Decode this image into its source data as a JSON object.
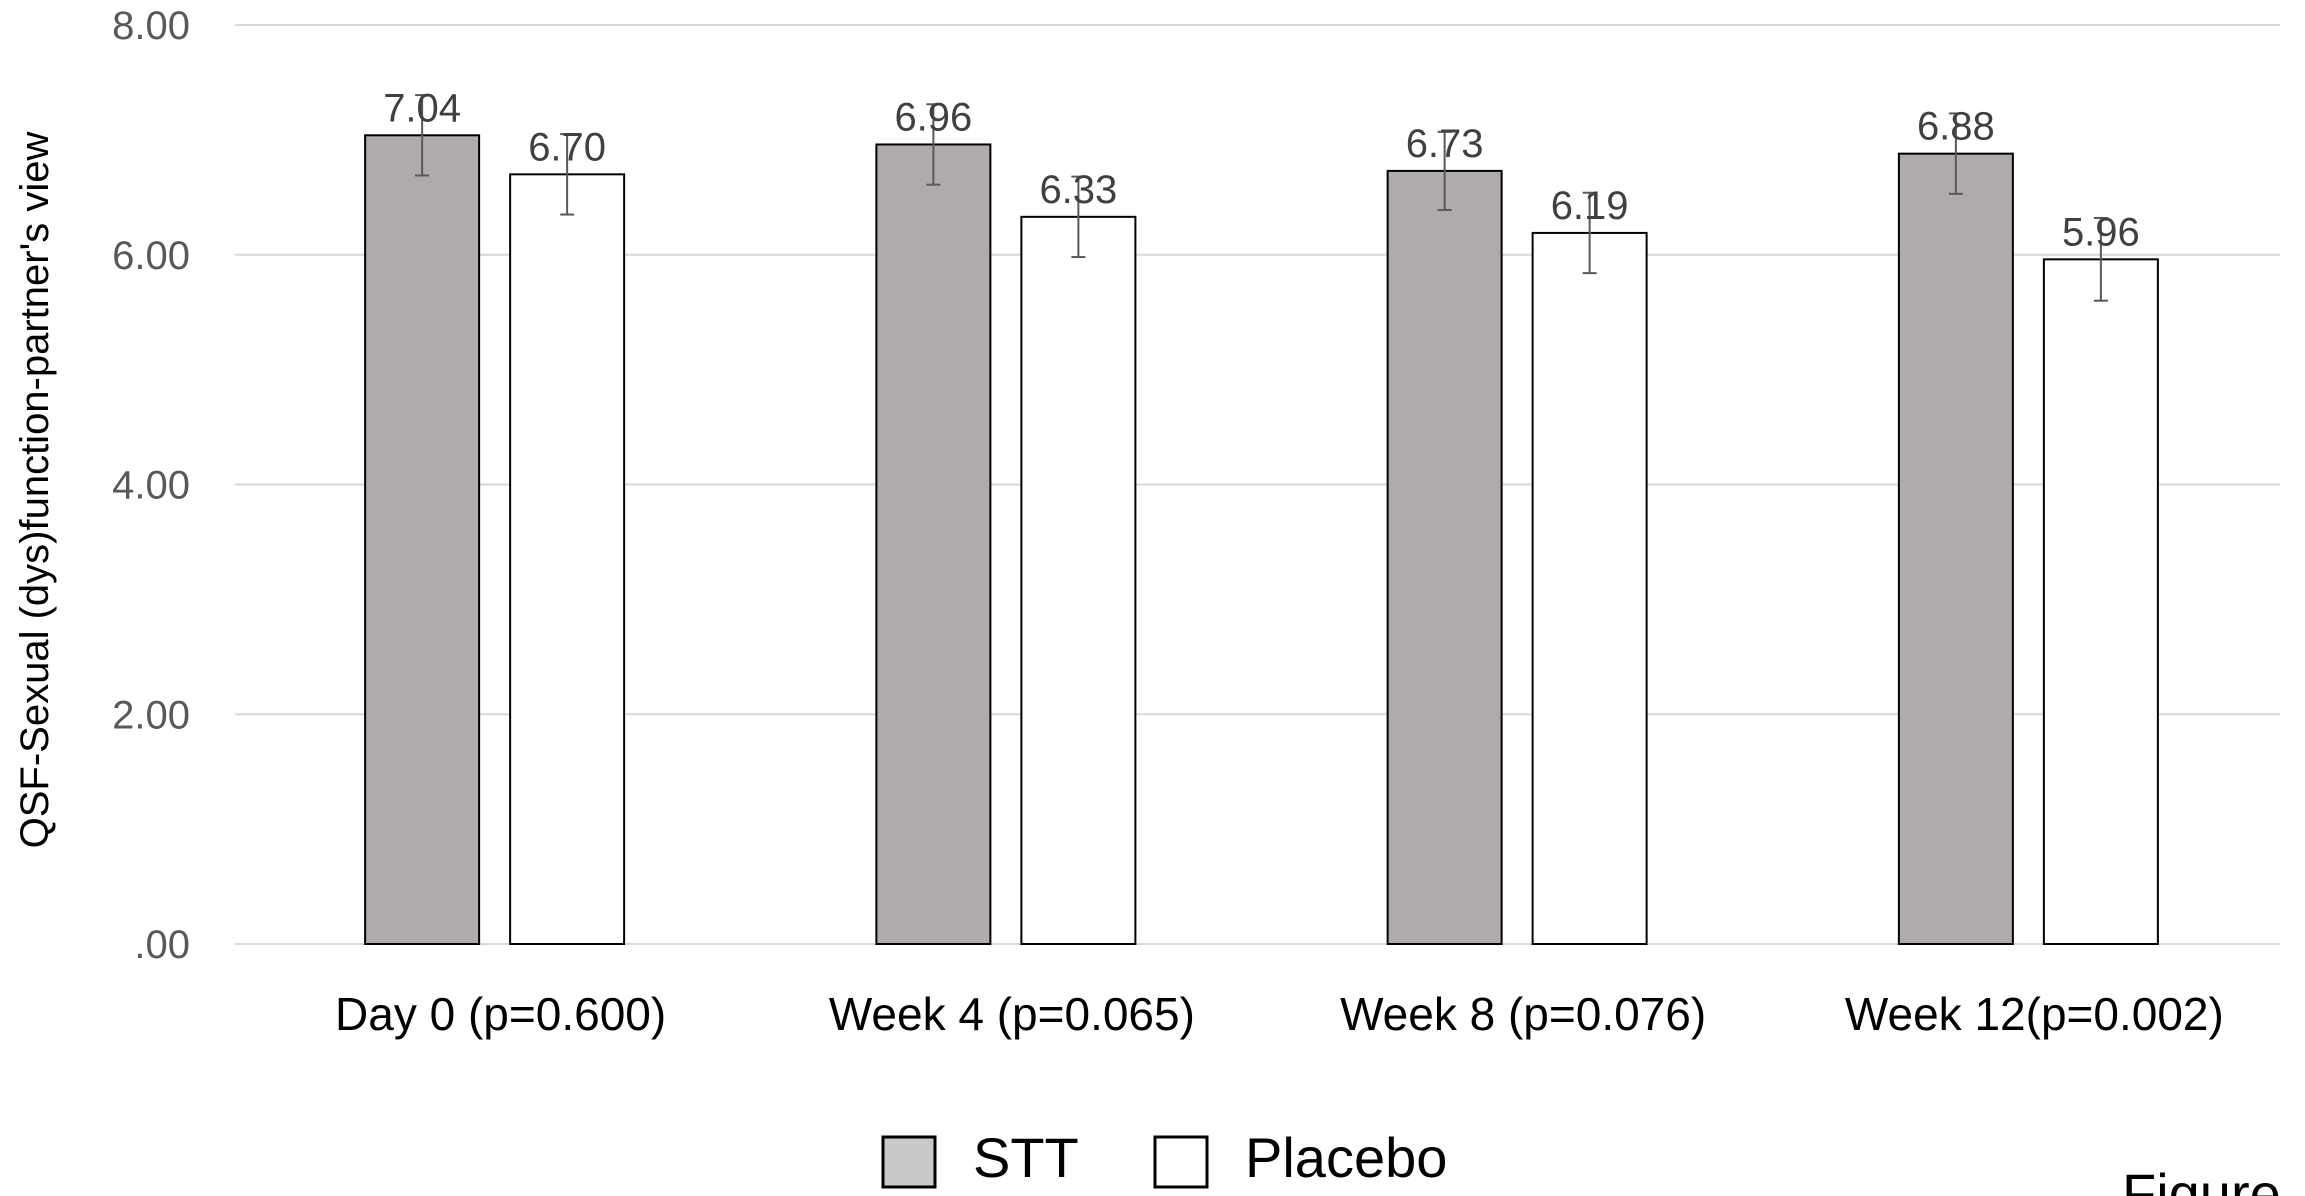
{
  "chart_data": {
    "type": "bar",
    "ylabel": "QSF-Sexual (dys)function-partner's view",
    "ylim": [
      0,
      8
    ],
    "yticks": [
      0,
      2,
      4,
      6,
      8
    ],
    "ytick_labels": [
      ".00",
      "2.00",
      "4.00",
      "6.00",
      "8.00"
    ],
    "grid": true,
    "legend_position": "bottom-center",
    "categories": [
      "Day 0 (p=0.600)",
      "Week 4 (p=0.065)",
      "Week 8 (p=0.076)",
      "Week 12(p=0.002)"
    ],
    "series": [
      {
        "name": "STT",
        "values": [
          7.04,
          6.96,
          6.73,
          6.88
        ],
        "value_labels": [
          "7.04",
          "6.96",
          "6.73",
          "6.88"
        ],
        "error": [
          0.35,
          0.35,
          0.34,
          0.35
        ],
        "color": "#afabab"
      },
      {
        "name": "Placebo",
        "values": [
          6.7,
          6.33,
          6.19,
          5.96
        ],
        "value_labels": [
          "6.70",
          "6.33",
          "6.19",
          "5.96"
        ],
        "error": [
          0.35,
          0.35,
          0.35,
          0.36
        ],
        "color": "#ffffff"
      }
    ],
    "corner_text": "Figure"
  },
  "colors": {
    "gridline": "#d9d9d9",
    "bar_stroke": "#000000",
    "error_bar": "#595959",
    "legend_stt_swatch": "#c9c9c9"
  }
}
